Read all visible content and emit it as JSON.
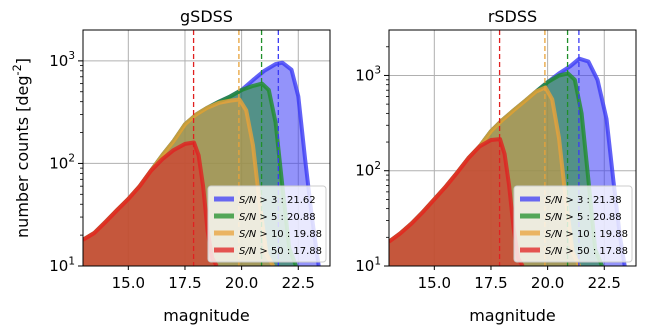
{
  "chart_data": [
    {
      "type": "area",
      "title": "gSDSS",
      "xlabel": "magnitude",
      "ylabel": "number counts [deg$^{-2}$]",
      "xlim": [
        13.0,
        23.9
      ],
      "ylim": [
        10,
        2000
      ],
      "yscale": "log",
      "xticks": [
        "15.0",
        "17.5",
        "20.0",
        "22.5"
      ],
      "yticks": [
        "10$^{1}$",
        "10$^{2}$",
        "10$^{3}$"
      ],
      "grid": true,
      "legend_position": "bottom-right",
      "series": [
        {
          "name": "S/N > 3 : 21.62",
          "color": "#3b3bf5",
          "x": [
            13.0,
            13.5,
            14.0,
            14.5,
            15.0,
            15.5,
            16.0,
            16.5,
            17.0,
            17.5,
            18.0,
            18.5,
            19.0,
            19.5,
            20.0,
            20.5,
            21.0,
            21.5,
            21.8,
            22.2,
            22.5,
            22.8,
            23.1,
            23.4
          ],
          "y": [
            18,
            21,
            27,
            35,
            45,
            60,
            85,
            120,
            165,
            240,
            300,
            350,
            400,
            450,
            520,
            650,
            800,
            930,
            960,
            820,
            450,
            110,
            30,
            10
          ]
        },
        {
          "name": "S/N > 5 : 20.88",
          "color": "#1f8f2a",
          "x": [
            13.0,
            13.5,
            14.0,
            14.5,
            15.0,
            15.5,
            16.0,
            16.5,
            17.0,
            17.5,
            18.0,
            18.5,
            19.0,
            19.5,
            20.0,
            20.5,
            20.9,
            21.2,
            21.5,
            21.8,
            22.1,
            22.4
          ],
          "y": [
            18,
            21,
            27,
            35,
            45,
            60,
            85,
            120,
            165,
            240,
            300,
            350,
            400,
            450,
            520,
            570,
            600,
            520,
            250,
            60,
            15,
            10
          ]
        },
        {
          "name": "S/N > 10 : 19.88",
          "color": "#e8a23a",
          "x": [
            13.0,
            13.5,
            14.0,
            14.5,
            15.0,
            15.5,
            16.0,
            16.5,
            17.0,
            17.5,
            18.0,
            18.5,
            19.0,
            19.5,
            19.9,
            20.2,
            20.5,
            20.8,
            21.1,
            21.4
          ],
          "y": [
            18,
            21,
            27,
            35,
            45,
            60,
            85,
            120,
            165,
            240,
            300,
            350,
            390,
            410,
            420,
            330,
            150,
            40,
            13,
            10
          ]
        },
        {
          "name": "S/N > 50 : 17.88",
          "color": "#e02020",
          "x": [
            13.0,
            13.5,
            14.0,
            14.5,
            15.0,
            15.5,
            16.0,
            16.5,
            17.0,
            17.5,
            17.9,
            18.1,
            18.3,
            18.5,
            18.7,
            18.9
          ],
          "y": [
            18,
            21,
            27,
            35,
            45,
            60,
            85,
            110,
            135,
            155,
            160,
            120,
            60,
            22,
            12,
            10
          ]
        }
      ],
      "vlines": [
        {
          "x": 21.62,
          "color": "#3b3bf5"
        },
        {
          "x": 20.88,
          "color": "#1f8f2a"
        },
        {
          "x": 19.88,
          "color": "#e8a23a"
        },
        {
          "x": 17.88,
          "color": "#e02020"
        }
      ]
    },
    {
      "type": "area",
      "title": "rSDSS",
      "xlabel": "magnitude",
      "ylabel": "",
      "xlim": [
        13.0,
        23.9
      ],
      "ylim": [
        10,
        3000
      ],
      "yscale": "log",
      "xticks": [
        "15.0",
        "17.5",
        "20.0",
        "22.5"
      ],
      "yticks": [
        "10$^{1}$",
        "10$^{2}$",
        "10$^{3}$"
      ],
      "grid": true,
      "legend_position": "bottom-right",
      "series": [
        {
          "name": "S/N > 3 : 21.38",
          "color": "#3b3bf5",
          "x": [
            13.0,
            13.5,
            14.0,
            14.5,
            15.0,
            15.5,
            16.0,
            16.5,
            17.0,
            17.5,
            18.0,
            18.5,
            19.0,
            19.5,
            20.0,
            20.5,
            21.0,
            21.4,
            21.8,
            22.2,
            22.6,
            22.9,
            23.2,
            23.4
          ],
          "y": [
            18,
            22,
            28,
            37,
            50,
            68,
            95,
            135,
            180,
            260,
            340,
            430,
            540,
            680,
            850,
            1050,
            1250,
            1500,
            1400,
            900,
            350,
            80,
            20,
            10
          ]
        },
        {
          "name": "S/N > 5 : 20.88",
          "color": "#1f8f2a",
          "x": [
            13.0,
            13.5,
            14.0,
            14.5,
            15.0,
            15.5,
            16.0,
            16.5,
            17.0,
            17.5,
            18.0,
            18.5,
            19.0,
            19.5,
            20.0,
            20.5,
            20.9,
            21.2,
            21.5,
            21.8,
            22.1,
            22.4
          ],
          "y": [
            18,
            22,
            28,
            37,
            50,
            68,
            95,
            135,
            180,
            260,
            340,
            430,
            540,
            680,
            850,
            1000,
            1050,
            900,
            400,
            80,
            15,
            10
          ]
        },
        {
          "name": "S/N > 10 : 19.88",
          "color": "#e8a23a",
          "x": [
            13.0,
            13.5,
            14.0,
            14.5,
            15.0,
            15.5,
            16.0,
            16.5,
            17.0,
            17.5,
            18.0,
            18.5,
            19.0,
            19.5,
            19.9,
            20.2,
            20.5,
            20.8,
            21.1,
            21.4
          ],
          "y": [
            18,
            22,
            28,
            37,
            50,
            68,
            95,
            135,
            180,
            260,
            340,
            430,
            540,
            680,
            750,
            560,
            220,
            50,
            14,
            10
          ]
        },
        {
          "name": "S/N > 50 : 17.88",
          "color": "#e02020",
          "x": [
            13.0,
            13.5,
            14.0,
            14.5,
            15.0,
            15.5,
            16.0,
            16.5,
            17.0,
            17.5,
            17.9,
            18.1,
            18.3,
            18.5,
            18.7,
            18.9
          ],
          "y": [
            18,
            22,
            28,
            37,
            50,
            68,
            95,
            135,
            180,
            210,
            215,
            150,
            70,
            25,
            12,
            10
          ]
        }
      ],
      "vlines": [
        {
          "x": 21.38,
          "color": "#3b3bf5"
        },
        {
          "x": 20.88,
          "color": "#1f8f2a"
        },
        {
          "x": 19.88,
          "color": "#e8a23a"
        },
        {
          "x": 17.88,
          "color": "#e02020"
        }
      ]
    }
  ]
}
